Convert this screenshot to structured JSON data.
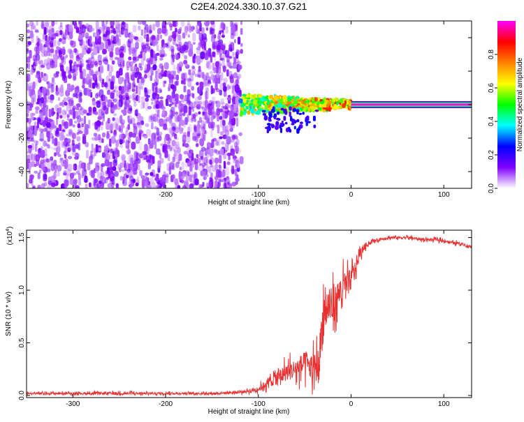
{
  "title": "C2E4.2024.330.10.37.G21",
  "chart_data": [
    {
      "type": "heatmap",
      "xlabel": "Height of straight line (km)",
      "ylabel": "Frequency (Hz)",
      "xlim": [
        -350,
        130
      ],
      "ylim": [
        -50,
        50
      ],
      "x_ticks": [
        -300,
        -200,
        -100,
        0,
        100
      ],
      "x_tick_labels": [
        "-300",
        "-200",
        "-100",
        "0",
        "100"
      ],
      "y_ticks": [
        -40,
        -20,
        0,
        20,
        40
      ],
      "y_tick_labels": [
        "-40",
        "-20",
        "0",
        "20",
        "40"
      ],
      "grid": false,
      "colorbar": {
        "label": "Normalized spectral amplitude",
        "range": [
          0,
          1
        ],
        "ticks": [
          0.0,
          0.2,
          0.4,
          0.6,
          0.8
        ],
        "tick_labels": [
          "0.0",
          "0.2",
          "0.4",
          "0.6",
          "0.8"
        ],
        "colormap": [
          "#ffffff",
          "#8000ff",
          "#0000ff",
          "#00ffff",
          "#00ff00",
          "#ffff00",
          "#ff8000",
          "#ff0000",
          "#ff00ff"
        ]
      },
      "regions": [
        {
          "desc": "noise",
          "x_range": [
            -350,
            -118
          ],
          "freq_range": [
            -50,
            50
          ],
          "amplitude": [
            0.05,
            0.15
          ]
        },
        {
          "desc": "signal-onset",
          "x_range": [
            -120,
            0
          ],
          "freq_range": [
            -6,
            6
          ],
          "amplitude": [
            0.3,
            0.7
          ]
        },
        {
          "desc": "carrier",
          "x_range": [
            0,
            130
          ],
          "freq": 0,
          "amplitude": 1.0
        }
      ]
    },
    {
      "type": "line",
      "xlabel": "Height of straight line (km)",
      "ylabel": "SNR (10 * v/v)",
      "y_multiplier": "(x10",
      "y_multiplier_exp": "4",
      "y_multiplier_close": ")",
      "xlim": [
        -350,
        130
      ],
      "ylim": [
        -0.02,
        1.57
      ],
      "x_ticks": [
        -300,
        -200,
        -100,
        0,
        100
      ],
      "x_tick_labels": [
        "-300",
        "-200",
        "-100",
        "0",
        "100"
      ],
      "y_ticks": [
        0.0,
        0.5,
        1.0,
        1.5
      ],
      "y_tick_labels": [
        "0.0",
        "0.5",
        "1.0",
        "1.5"
      ],
      "grid": false,
      "series": [
        {
          "color": "#e83030",
          "x": [
            -350,
            -300,
            -250,
            -200,
            -150,
            -120,
            -100,
            -90,
            -80,
            -70,
            -60,
            -50,
            -45,
            -40,
            -35,
            -30,
            -25,
            -20,
            -15,
            -10,
            -5,
            0,
            5,
            10,
            15,
            20,
            25,
            30,
            40,
            50,
            60,
            70,
            80,
            90,
            100,
            110,
            120,
            130
          ],
          "y": [
            0.02,
            0.02,
            0.02,
            0.02,
            0.02,
            0.03,
            0.06,
            0.12,
            0.17,
            0.22,
            0.25,
            0.3,
            0.28,
            0.25,
            0.3,
            0.75,
            0.85,
            0.82,
            0.95,
            1.0,
            1.05,
            1.1,
            1.22,
            1.35,
            1.42,
            1.45,
            1.47,
            1.48,
            1.5,
            1.5,
            1.5,
            1.49,
            1.48,
            1.48,
            1.47,
            1.45,
            1.44,
            1.41
          ],
          "spread": [
            0.02,
            0.02,
            0.03,
            0.02,
            0.02,
            0.03,
            0.05,
            0.1,
            0.15,
            0.18,
            0.22,
            0.25,
            0.28,
            0.3,
            0.35,
            0.55,
            0.4,
            0.35,
            0.3,
            0.3,
            0.28,
            0.22,
            0.15,
            0.1,
            0.06,
            0.04,
            0.03,
            0.03,
            0.03,
            0.03,
            0.03,
            0.03,
            0.03,
            0.03,
            0.03,
            0.03,
            0.03,
            0.03
          ]
        }
      ]
    }
  ]
}
